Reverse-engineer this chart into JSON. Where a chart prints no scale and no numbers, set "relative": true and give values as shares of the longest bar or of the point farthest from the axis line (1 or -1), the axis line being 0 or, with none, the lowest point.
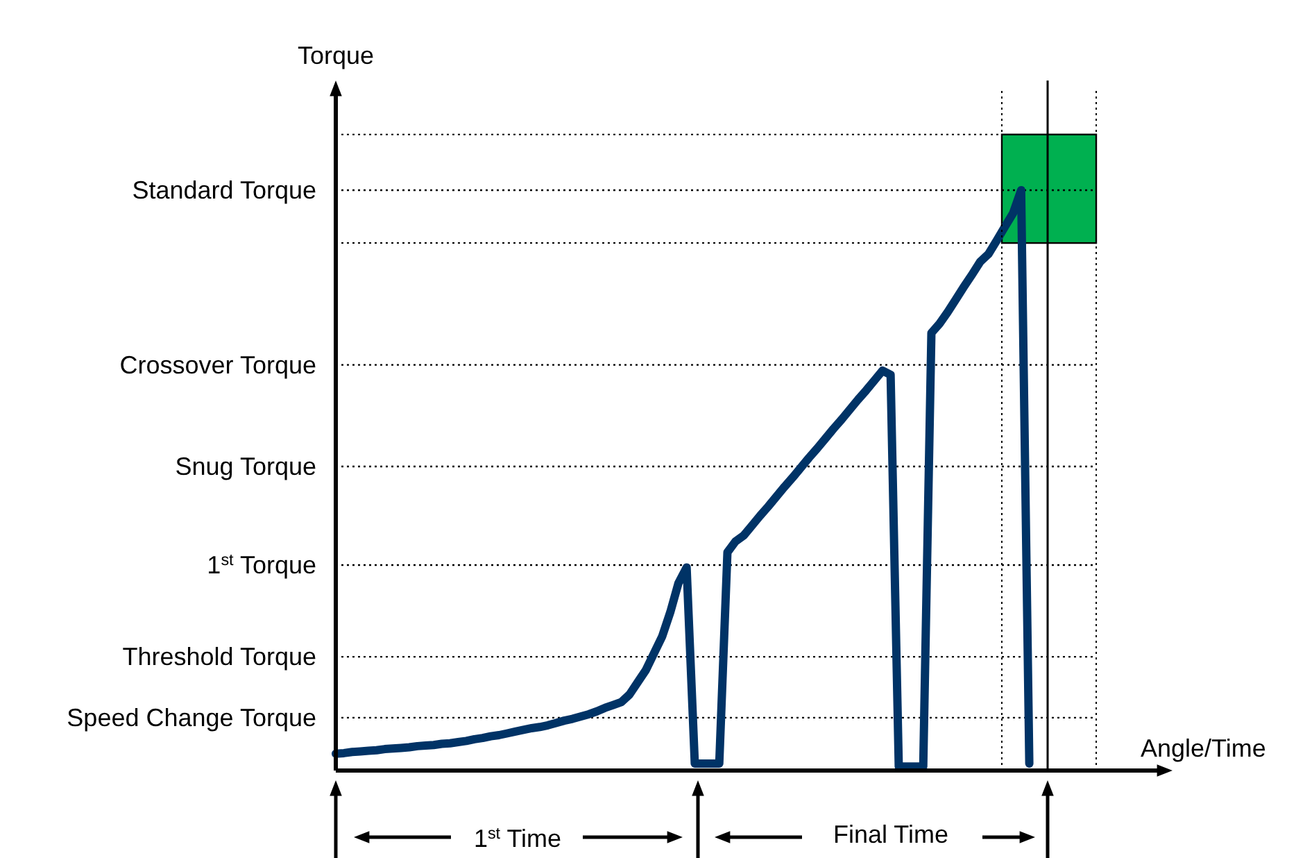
{
  "chart_data": {
    "type": "line",
    "relative": true,
    "xlabel": "Angle/Time",
    "ylabel": "Torque",
    "line_style": "solid",
    "categories": [
      null,
      null,
      null,
      null,
      null,
      null,
      null,
      null,
      null,
      null,
      null,
      null,
      null,
      null,
      null,
      null,
      null,
      null,
      null,
      null,
      null,
      null,
      null,
      null,
      null,
      null,
      null,
      null,
      null,
      null,
      null,
      null,
      null,
      null,
      null,
      null,
      null,
      null,
      null,
      null,
      null,
      null,
      null,
      null,
      null,
      null,
      null,
      null,
      null,
      null,
      null,
      null,
      null,
      null,
      null,
      null,
      null,
      null,
      null,
      null,
      null,
      null,
      null,
      null,
      null,
      null,
      null,
      null,
      null,
      null,
      null,
      null,
      null,
      null,
      null,
      null,
      null,
      null,
      null,
      null,
      null,
      null,
      null,
      null,
      null,
      null,
      null,
      null,
      null,
      null,
      null,
      null,
      null,
      null,
      null,
      null,
      null,
      null,
      null,
      null,
      null
    ],
    "series": [
      {
        "color": "#003366",
        "values": [
          0.029,
          0.03,
          0.032,
          0.033,
          0.034,
          0.035,
          0.037,
          0.038,
          0.039,
          0.04,
          0.042,
          0.043,
          0.044,
          0.046,
          0.047,
          0.049,
          0.051,
          0.054,
          0.056,
          0.059,
          0.061,
          0.064,
          0.067,
          0.07,
          0.073,
          0.075,
          0.078,
          0.082,
          0.086,
          0.089,
          0.093,
          0.097,
          0.102,
          0.108,
          0.113,
          0.118,
          0.131,
          0.152,
          0.173,
          0.202,
          0.231,
          0.273,
          0.323,
          0.35,
          0.012,
          0.012,
          0.012,
          0.012,
          0.376,
          0.395,
          0.405,
          0.422,
          0.439,
          0.455,
          0.472,
          0.489,
          0.505,
          0.522,
          0.539,
          0.555,
          0.572,
          0.589,
          0.605,
          0.622,
          0.639,
          0.655,
          0.672,
          0.689,
          0.682,
          0.007,
          0.007,
          0.007,
          0.007,
          0.754,
          0.77,
          0.79,
          0.812,
          0.834,
          0.855,
          0.877,
          0.89,
          0.913,
          0.937,
          0.96,
          1.0,
          0.012,
          null,
          null,
          null,
          null,
          null,
          null,
          null,
          null,
          null,
          null,
          null,
          null,
          null,
          null,
          null
        ]
      }
    ],
    "ref_lines": [
      {
        "axis": "y",
        "value": 1.0,
        "label": "Standard Torque",
        "line_style": "dotted"
      },
      {
        "axis": "y",
        "value": 0.699,
        "label": "Crossover Torque",
        "line_style": "dotted"
      },
      {
        "axis": "y",
        "value": 0.524,
        "label": "Snug Torque",
        "line_style": "dotted"
      },
      {
        "axis": "y",
        "value": 0.354,
        "label": "1$^{st}$ Torque",
        "line_style": "dotted"
      },
      {
        "axis": "y",
        "value": 0.196,
        "label": "Threshold Torque",
        "line_style": "dotted"
      },
      {
        "axis": "y",
        "value": 0.091,
        "label": "Speed Change Torque",
        "line_style": "dotted"
      }
    ],
    "bands": [
      {
        "axis": "y",
        "from": 0.909,
        "to": 1.096,
        "color": "#00b050"
      }
    ],
    "annotations": [
      "1$^{st}$ Time",
      "Final Time"
    ]
  }
}
